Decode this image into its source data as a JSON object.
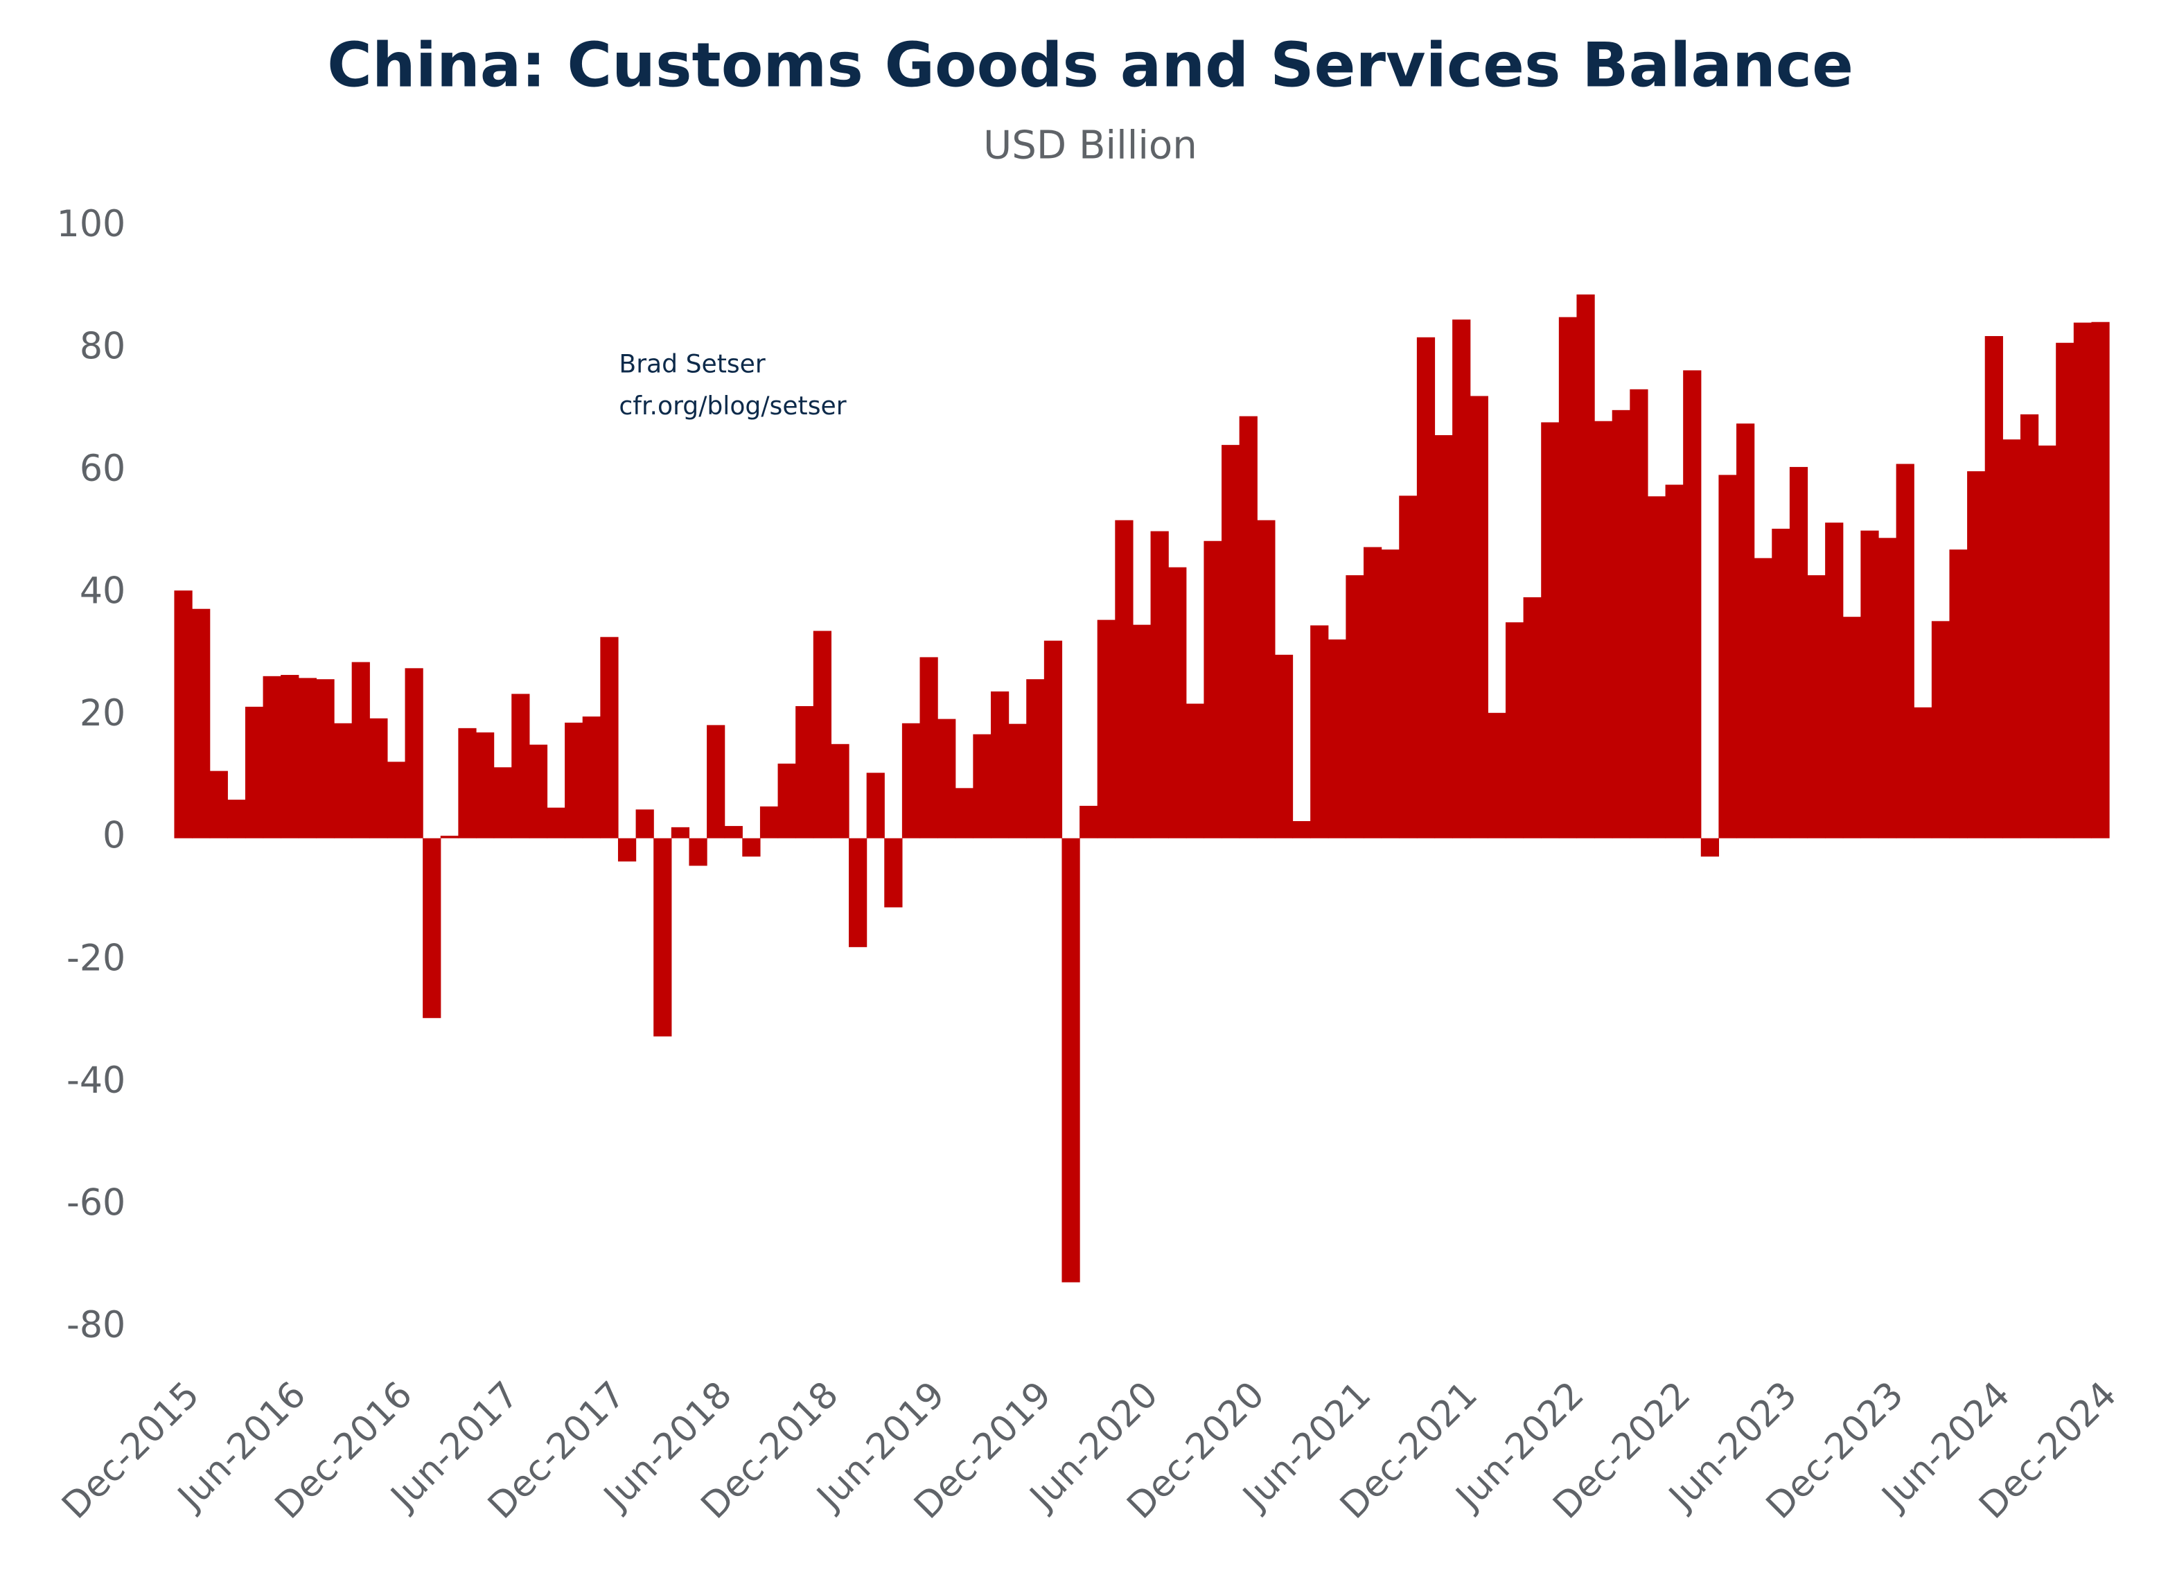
{
  "chart_data": {
    "type": "bar",
    "title": "China: Customs Goods and Services Balance",
    "subtitle": "USD Billion",
    "annotations": [
      "Brad Setser",
      "cfr.org/blog/setser"
    ],
    "color": "#c00000",
    "categories": [
      "Dec-2015",
      null,
      null,
      null,
      null,
      null,
      "Jun-2016",
      null,
      null,
      null,
      null,
      null,
      "Dec-2016",
      null,
      null,
      null,
      null,
      null,
      "Jun-2017",
      null,
      null,
      null,
      null,
      null,
      "Dec-2017",
      null,
      null,
      null,
      null,
      null,
      "Jun-2018",
      null,
      null,
      null,
      null,
      null,
      "Dec-2018",
      null,
      null,
      null,
      null,
      null,
      "Jun-2019",
      null,
      null,
      null,
      null,
      null,
      "Dec-2019",
      null,
      null,
      null,
      null,
      null,
      "Jun-2020",
      null,
      null,
      null,
      null,
      null,
      "Dec-2020",
      null,
      null,
      null,
      null,
      null,
      "Jun-2021",
      null,
      null,
      null,
      null,
      null,
      "Dec-2021",
      null,
      null,
      null,
      null,
      null,
      "Jun-2022",
      null,
      null,
      null,
      null,
      null,
      "Dec-2022",
      null,
      null,
      null,
      null,
      null,
      "Jun-2023",
      null,
      null,
      null,
      null,
      null,
      "Dec-2023",
      null,
      null,
      null,
      null,
      null,
      "Jun-2024",
      null,
      null,
      null,
      null,
      null,
      "Dec-2024"
    ],
    "values": [
      40.5,
      37.5,
      11,
      6.3,
      21.5,
      26.5,
      26.7,
      26.2,
      26,
      18.8,
      28.8,
      19.6,
      12.5,
      27.8,
      -29.4,
      0.4,
      18,
      17.3,
      11.6,
      23.6,
      15.3,
      5,
      18.9,
      19.9,
      32.9,
      -3.8,
      4.7,
      -32.4,
      1.8,
      -4.5,
      18.5,
      2,
      -3,
      5.2,
      12.2,
      21.6,
      33.9,
      15.4,
      -17.8,
      10.7,
      -11.3,
      18.8,
      29.6,
      19.5,
      8.2,
      17,
      24,
      18.7,
      26,
      32.3,
      -72.6,
      5.3,
      35.7,
      52,
      34.9,
      50.2,
      44.3,
      22,
      48.6,
      64.3,
      69,
      52,
      30,
      2.8,
      34.8,
      32.5,
      43,
      47.6,
      47.2,
      56,
      81.9,
      65.9,
      84.8,
      72.3,
      20.5,
      35.3,
      39.4,
      68,
      85.2,
      88.9,
      68.2,
      70,
      73.4,
      55.9,
      57.8,
      76.5,
      -3,
      59.4,
      67.8,
      45.8,
      50.6,
      60.7,
      43,
      51.6,
      36.2,
      50.3,
      49.1,
      61.2,
      21.4,
      35.5,
      47.2,
      60,
      82.1,
      65.2,
      69.3,
      64.2,
      81,
      84.3,
      84.4
    ],
    "ylim": [
      -86,
      100
    ],
    "yticks": [
      -80,
      -60,
      -40,
      -20,
      0,
      20,
      40,
      60,
      80,
      100
    ],
    "grid": false
  }
}
